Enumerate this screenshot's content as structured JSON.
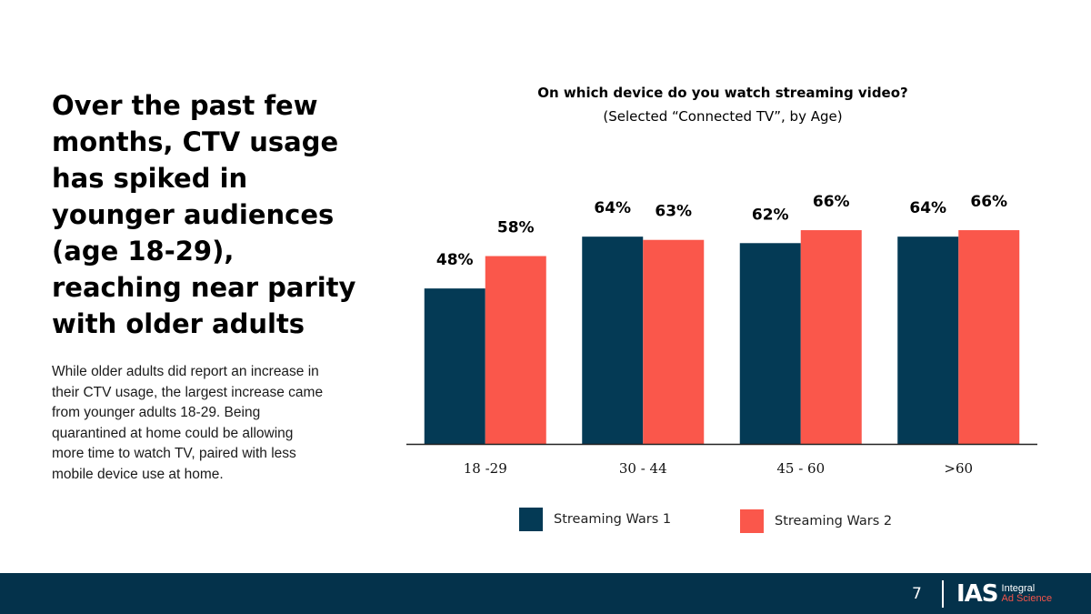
{
  "slide": {
    "headline": "Over the past few months, CTV usage has spiked in younger audiences (age 18-29), reaching near parity with older adults",
    "body": "While older adults did report an increase in their CTV usage, the largest increase came from younger adults 18-29. Being quarantined at home could be allowing more time to watch TV, paired with less mobile device use at home.",
    "page_number": "7"
  },
  "logo": {
    "mark": "IAS",
    "line1": "Integral",
    "line2": "Ad Science"
  },
  "colors": {
    "series1": "#043a55",
    "series2": "#fa574b",
    "footer": "#04324b"
  },
  "chart_data": {
    "type": "bar",
    "title": "On which device do you watch streaming video?",
    "subtitle": "(Selected “Connected TV”, by Age)",
    "categories": [
      "18 -29",
      "30 - 44",
      "45 - 60",
      ">60"
    ],
    "series": [
      {
        "name": "Streaming Wars 1",
        "values": [
          48,
          64,
          62,
          64
        ],
        "labels": [
          "48%",
          "64%",
          "62%",
          "64%"
        ]
      },
      {
        "name": "Streaming Wars 2",
        "values": [
          58,
          63,
          66,
          66
        ],
        "labels": [
          "58%",
          "63%",
          "66%",
          "66%"
        ]
      }
    ],
    "ylim": [
      0,
      100
    ],
    "grid": false,
    "legend": "bottom"
  }
}
